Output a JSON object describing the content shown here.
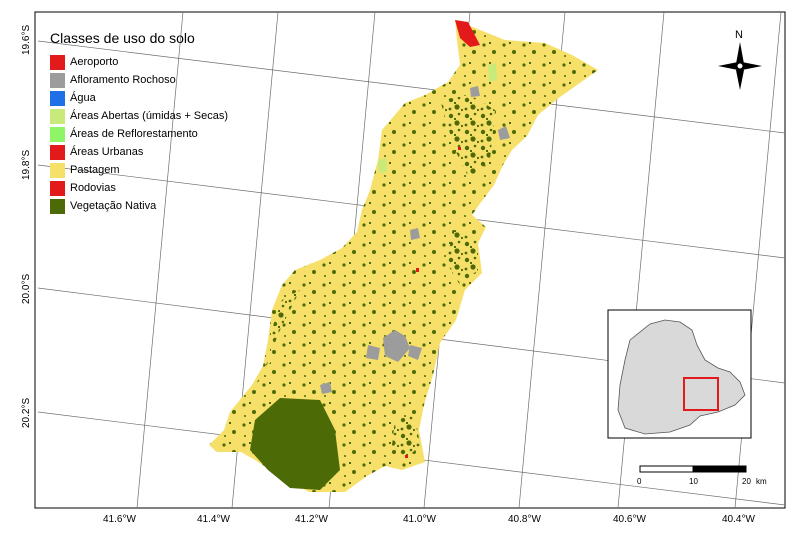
{
  "legend": {
    "title": "Classes de uso do solo",
    "items": [
      {
        "name": "legend-item-aeroporto",
        "label": "Aeroporto",
        "color": "#e31a1c"
      },
      {
        "name": "legend-item-afloramento",
        "label": "Afloramento Rochoso",
        "color": "#9c9c9c"
      },
      {
        "name": "legend-item-agua",
        "label": "Água",
        "color": "#1f6fe6"
      },
      {
        "name": "legend-item-areas-abertas",
        "label": "Áreas Abertas (úmidas + Secas)",
        "color": "#c7ea7a"
      },
      {
        "name": "legend-item-reflorestamento",
        "label": "Áreas de Reflorestamento",
        "color": "#8ef566"
      },
      {
        "name": "legend-item-urbanas",
        "label": "Áreas Urbanas",
        "color": "#e31a1c"
      },
      {
        "name": "legend-item-pastagem",
        "label": "Pastagem",
        "color": "#f7e06a"
      },
      {
        "name": "legend-item-rodovias",
        "label": "Rodovias",
        "color": "#e31a1c"
      },
      {
        "name": "legend-item-vegetacao",
        "label": "Vegetação Nativa",
        "color": "#4c6a05"
      }
    ]
  },
  "axes": {
    "x_ticks": [
      "41.6°W",
      "41.4°W",
      "41.2°W",
      "41.0°W",
      "40.8°W",
      "40.6°W",
      "40.4°W"
    ],
    "y_ticks": [
      "19.6°S",
      "19.8°S",
      "20.0°S",
      "20.2°S"
    ]
  },
  "north_arrow": {
    "label": "N"
  },
  "scale_bar": {
    "ticks": [
      "0",
      "10",
      "20"
    ],
    "unit": "km"
  },
  "colors": {
    "pastagem": "#f7e06a",
    "vegetacao": "#4c6a05",
    "afloramento": "#9c9c9c",
    "urbano": "#e31a1c",
    "inset_fill": "#d9d9d9",
    "inset_highlight": "#e31a1c",
    "graticule": "#6e6e6e"
  }
}
